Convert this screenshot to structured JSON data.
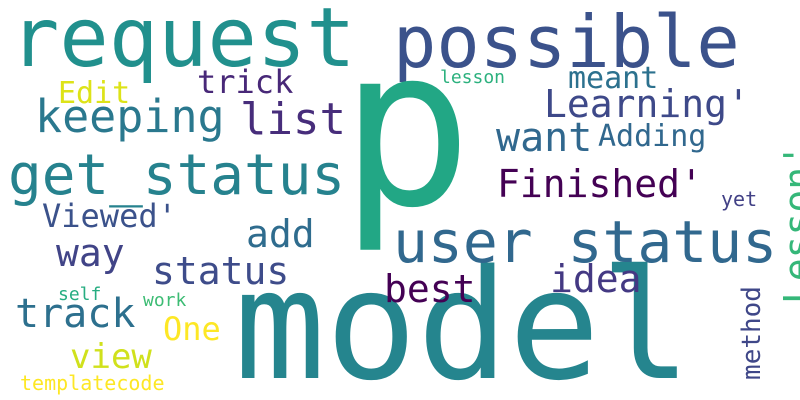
{
  "words": [
    {
      "text": "request",
      "color": "#21908d"
    },
    {
      "text": "possible",
      "color": "#3b528b"
    },
    {
      "text": "p",
      "color": "#22a785"
    },
    {
      "text": "model",
      "color": "#25858e"
    },
    {
      "text": "user status",
      "color": "#31688e"
    },
    {
      "text": "get_status",
      "color": "#26828e"
    },
    {
      "text": "Finished'",
      "color": "#440154"
    },
    {
      "text": "Learning'",
      "color": "#3e4989"
    },
    {
      "text": "Lesson'",
      "color": "#35b779"
    },
    {
      "text": "keeping",
      "color": "#2a788e"
    },
    {
      "text": "list",
      "color": "#472d7b"
    },
    {
      "text": "want",
      "color": "#31688e"
    },
    {
      "text": "Adding",
      "color": "#31688e"
    },
    {
      "text": "trick",
      "color": "#482878"
    },
    {
      "text": "meant",
      "color": "#2c718e"
    },
    {
      "text": "Edit",
      "color": "#dde318"
    },
    {
      "text": "lesson",
      "color": "#2cb17e"
    },
    {
      "text": "Viewed'",
      "color": "#3b528b"
    },
    {
      "text": "add",
      "color": "#2f6c8e"
    },
    {
      "text": "way",
      "color": "#414487"
    },
    {
      "text": "status",
      "color": "#3e4c8a"
    },
    {
      "text": "best",
      "color": "#440154"
    },
    {
      "text": "idea",
      "color": "#443983"
    },
    {
      "text": "track",
      "color": "#2d708e"
    },
    {
      "text": "One",
      "color": "#fde725"
    },
    {
      "text": "view",
      "color": "#d0e11c"
    },
    {
      "text": "work",
      "color": "#3dbc74"
    },
    {
      "text": "self",
      "color": "#26ad81"
    },
    {
      "text": "method",
      "color": "#3f4788"
    },
    {
      "text": "yet",
      "color": "#424186"
    },
    {
      "text": "templatecode",
      "color": "#fde725"
    }
  ]
}
